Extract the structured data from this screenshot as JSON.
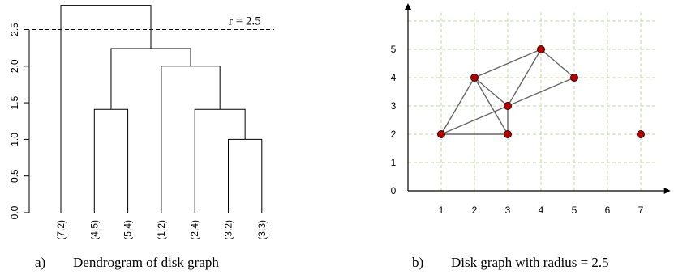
{
  "dendrogram": {
    "y_ticks": [
      "0.0",
      "0.5",
      "1.0",
      "1.5",
      "2.0",
      "2.5"
    ],
    "leaves": [
      "(7,2)",
      "(4,5)",
      "(5,4)",
      "(1,2)",
      "(2,4)",
      "(3,2)",
      "(3,3)"
    ],
    "threshold_label": "r = 2.5",
    "caption_letter": "a)",
    "caption_text": "Dendrogram of disk graph"
  },
  "graph": {
    "x_ticks": [
      "1",
      "2",
      "3",
      "4",
      "5",
      "6",
      "7"
    ],
    "y_ticks": [
      "0",
      "1",
      "2",
      "3",
      "4",
      "5"
    ],
    "caption_letter": "b)",
    "caption_text": "Disk graph with radius = 2.5"
  },
  "chart_data": [
    {
      "type": "dendrogram",
      "leaves": [
        "(7,2)",
        "(4,5)",
        "(5,4)",
        "(1,2)",
        "(2,4)",
        "(3,2)",
        "(3,3)"
      ],
      "merges": [
        {
          "left": "(3,2)",
          "right": "(3,3)",
          "height": 1.0
        },
        {
          "left": "(2,4)",
          "right": "(3,2)+(3,3)",
          "height": 1.41
        },
        {
          "left": "(1,2)",
          "right": "(2,4)+(3,2)+(3,3)",
          "height": 2.0
        },
        {
          "left": "(4,5)",
          "right": "(5,4)",
          "height": 1.41
        },
        {
          "left": "(4,5)+(5,4)",
          "right": "(1,2)+(2,4)+(3,2)+(3,3)",
          "height": 2.24
        },
        {
          "left": "(7,2)",
          "right": "rest",
          "height": 2.83
        }
      ],
      "threshold": 2.5,
      "ylim": [
        0,
        2.85
      ]
    },
    {
      "type": "scatter",
      "points": [
        [
          1,
          2
        ],
        [
          2,
          4
        ],
        [
          3,
          2
        ],
        [
          3,
          3
        ],
        [
          4,
          5
        ],
        [
          5,
          4
        ],
        [
          7,
          2
        ]
      ],
      "edges": [
        [
          [
            1,
            2
          ],
          [
            2,
            4
          ]
        ],
        [
          [
            1,
            2
          ],
          [
            3,
            2
          ]
        ],
        [
          [
            1,
            2
          ],
          [
            3,
            3
          ]
        ],
        [
          [
            2,
            4
          ],
          [
            3,
            2
          ]
        ],
        [
          [
            2,
            4
          ],
          [
            3,
            3
          ]
        ],
        [
          [
            2,
            4
          ],
          [
            4,
            5
          ]
        ],
        [
          [
            3,
            3
          ],
          [
            3,
            2
          ]
        ],
        [
          [
            3,
            3
          ],
          [
            4,
            5
          ]
        ],
        [
          [
            3,
            3
          ],
          [
            5,
            4
          ]
        ],
        [
          [
            4,
            5
          ],
          [
            5,
            4
          ]
        ]
      ],
      "radius": 2.5,
      "xlim": [
        0,
        7.5
      ],
      "ylim": [
        0,
        5.5
      ],
      "grid": true
    }
  ]
}
